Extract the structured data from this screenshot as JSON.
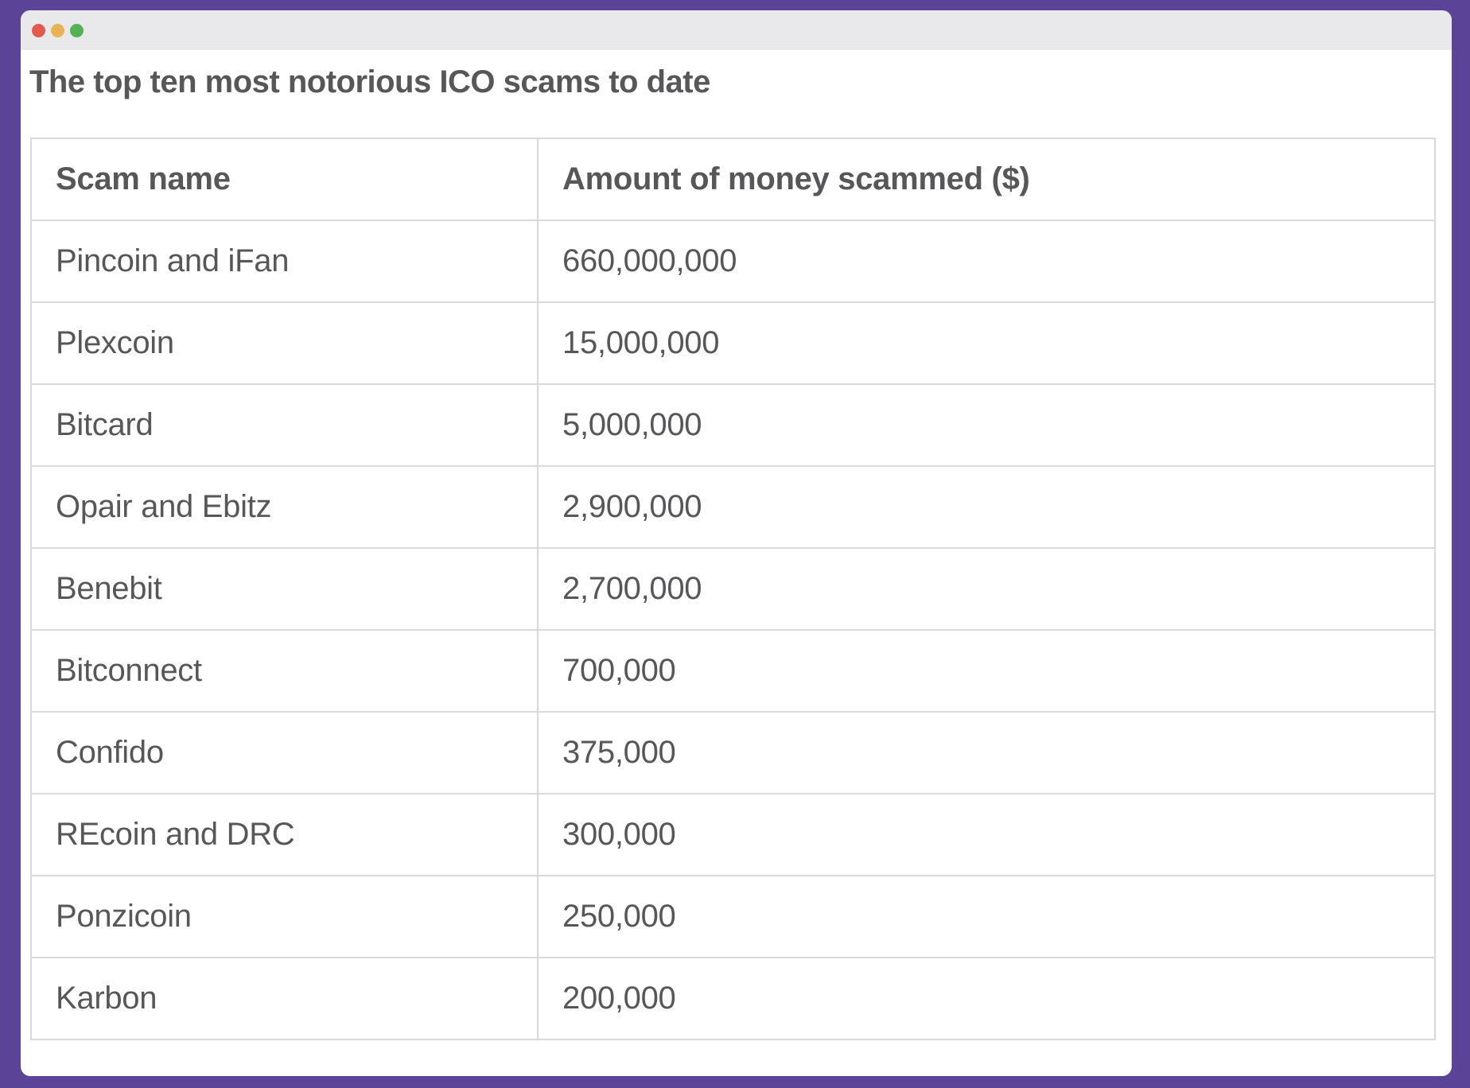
{
  "window": {
    "title": "The top ten most notorious ICO scams to date",
    "traffic_lights": {
      "close": "close-button",
      "minimize": "minimize-button",
      "zoom": "zoom-button"
    }
  },
  "colors": {
    "backdrop_purple": "#5b4397",
    "titlebar_gray": "#e9e8ea",
    "traffic_red": "#e25950",
    "traffic_yellow": "#e8b354",
    "traffic_green": "#55b154",
    "text_gray": "#57575a",
    "table_border_gray": "#d9d9d9"
  },
  "table": {
    "columns": [
      "Scam name",
      "Amount of money scammed ($)"
    ],
    "rows": [
      {
        "name": "Pincoin and iFan",
        "amount": "660,000,000"
      },
      {
        "name": "Plexcoin",
        "amount": "15,000,000"
      },
      {
        "name": "Bitcard",
        "amount": "5,000,000"
      },
      {
        "name": "Opair and Ebitz",
        "amount": "2,900,000"
      },
      {
        "name": "Benebit",
        "amount": "2,700,000"
      },
      {
        "name": "Bitconnect",
        "amount": "700,000"
      },
      {
        "name": "Confido",
        "amount": "375,000"
      },
      {
        "name": "REcoin and DRC",
        "amount": "300,000"
      },
      {
        "name": "Ponzicoin",
        "amount": "250,000"
      },
      {
        "name": "Karbon",
        "amount": "200,000"
      }
    ]
  },
  "chart_data": {
    "type": "table",
    "title": "The top ten most notorious ICO scams to date",
    "columns": [
      "Scam name",
      "Amount of money scammed ($)"
    ],
    "rows": [
      [
        "Pincoin and iFan",
        660000000
      ],
      [
        "Plexcoin",
        15000000
      ],
      [
        "Bitcard",
        5000000
      ],
      [
        "Opair and Ebitz",
        2900000
      ],
      [
        "Benebit",
        2700000
      ],
      [
        "Bitconnect",
        700000
      ],
      [
        "Confido",
        375000
      ],
      [
        "REcoin and DRC",
        300000
      ],
      [
        "Ponzicoin",
        250000
      ],
      [
        "Karbon",
        200000
      ]
    ]
  }
}
